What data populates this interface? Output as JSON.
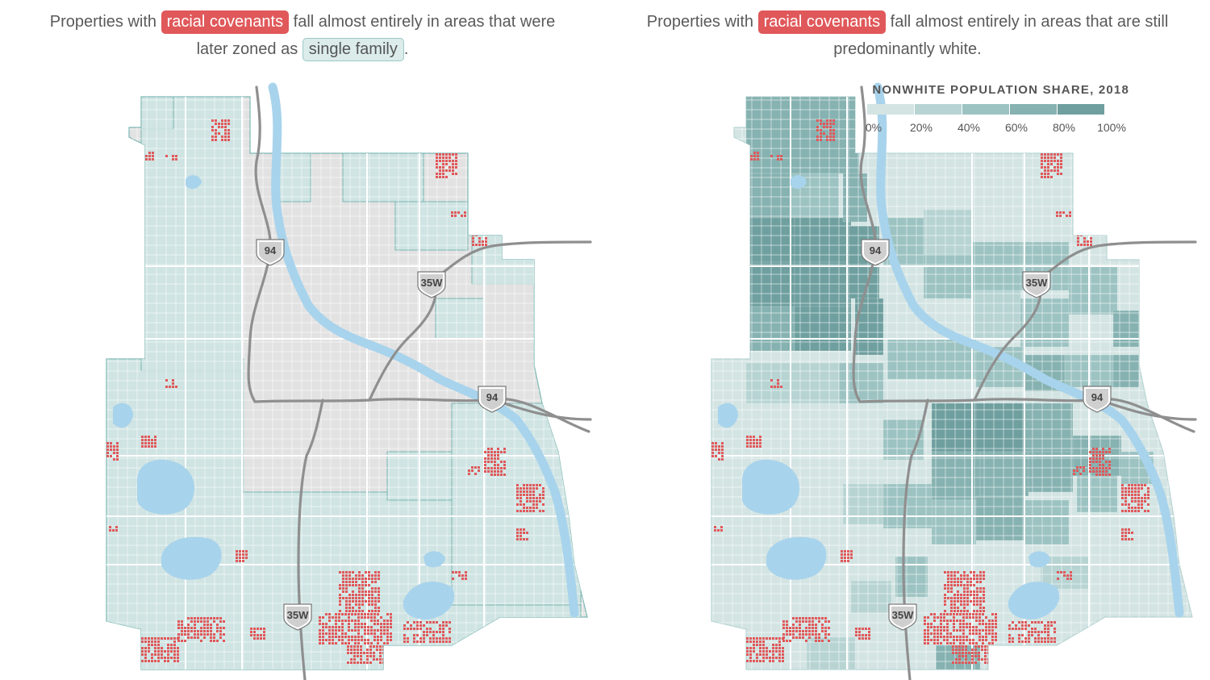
{
  "colors": {
    "covenant_red": "#e0585a",
    "single_family_fill": "#cfe4e3",
    "single_family_edge": "#7ab6b2",
    "base_gray": "#e2e2e2",
    "water": "#a8d3ec",
    "highway": "#8f8f8f",
    "share_scale": [
      "#d3e4e3",
      "#b7d4d3",
      "#9cc3c2",
      "#86b2b1",
      "#6f9f9f"
    ]
  },
  "left_map": {
    "caption_before": "Properties with",
    "caption_highlight": "racial covenants",
    "caption_middle": "fall almost entirely in areas that were later zoned as",
    "caption_zoning": "single family",
    "caption_end": "."
  },
  "right_map": {
    "caption_before": "Properties with",
    "caption_highlight": "racial covenants",
    "caption_after": "fall almost entirely in areas that are still predominantly white."
  },
  "legend": {
    "title": "NONWHITE POPULATION SHARE, 2018",
    "labels": [
      "0%",
      "20%",
      "40%",
      "60%",
      "80%",
      "100%"
    ]
  },
  "shields": {
    "i94_north": "94",
    "i35w_north": "35W",
    "i94_east": "94",
    "i35w_south": "35W"
  }
}
